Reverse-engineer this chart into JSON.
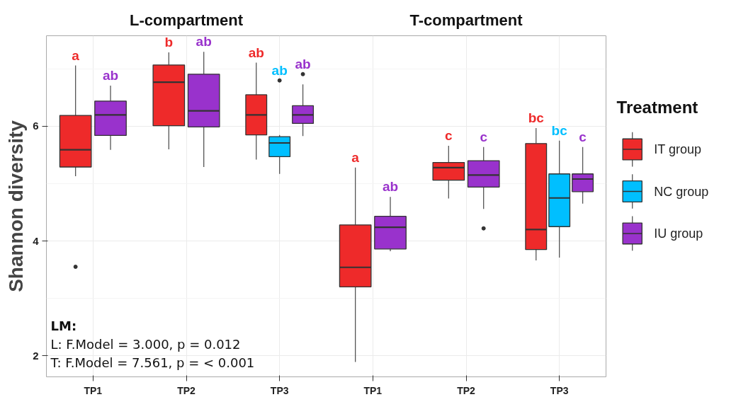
{
  "chart_data": {
    "type": "box",
    "ylabel": "Shannon diversity",
    "legend_title": "Treatment",
    "categories": [
      "TP1",
      "TP2",
      "TP3",
      "TP1",
      "TP2",
      "TP3"
    ],
    "ylim": [
      1.63,
      7.58
    ],
    "yticks": [
      2,
      4,
      6
    ],
    "grid": true,
    "legend": "right",
    "annotations": [
      "L-compartment",
      "T-compartment",
      "LM:",
      "L: F.Model = 3.000, p = 0.012",
      "T: F.Model = 7.561, p = < 0.001"
    ],
    "series": [
      {
        "name": "IT group",
        "color": "#ee2a2a",
        "value_labels": [
          "a",
          "b",
          "ab",
          "a",
          "c",
          "bc"
        ],
        "boxes": [
          {
            "low": 5.13,
            "q1": 5.29,
            "median": 5.59,
            "q3": 6.19,
            "high": 7.06,
            "outliers": [
              3.55
            ]
          },
          {
            "low": 5.6,
            "q1": 6.01,
            "median": 6.77,
            "q3": 7.07,
            "high": 7.29
          },
          {
            "low": 5.42,
            "q1": 5.85,
            "median": 6.2,
            "q3": 6.55,
            "high": 7.11
          },
          {
            "low": 1.89,
            "q1": 3.2,
            "median": 3.54,
            "q3": 4.28,
            "high": 5.28
          },
          {
            "low": 4.74,
            "q1": 5.06,
            "median": 5.28,
            "q3": 5.37,
            "high": 5.66
          },
          {
            "low": 3.66,
            "q1": 3.85,
            "median": 4.2,
            "q3": 5.7,
            "high": 5.97
          }
        ]
      },
      {
        "name": "NC group",
        "color": "#00bfff",
        "value_labels": [
          null,
          null,
          "ab",
          null,
          null,
          "bc"
        ],
        "boxes": [
          null,
          null,
          {
            "low": 5.17,
            "q1": 5.47,
            "median": 5.71,
            "q3": 5.82,
            "high": 5.85,
            "outliers": [
              6.8
            ]
          },
          null,
          null,
          {
            "low": 3.71,
            "q1": 4.25,
            "median": 4.75,
            "q3": 5.17,
            "high": 5.75
          }
        ]
      },
      {
        "name": "IU group",
        "color": "#9932cc",
        "value_labels": [
          "ab",
          "ab",
          "ab",
          "ab",
          "c",
          "c"
        ],
        "boxes": [
          {
            "low": 5.59,
            "q1": 5.84,
            "median": 6.2,
            "q3": 6.44,
            "high": 6.71
          },
          {
            "low": 5.29,
            "q1": 5.99,
            "median": 6.27,
            "q3": 6.91,
            "high": 7.3
          },
          {
            "low": 5.83,
            "q1": 6.05,
            "median": 6.2,
            "q3": 6.36,
            "high": 6.73,
            "outliers": [
              6.91
            ]
          },
          {
            "low": 3.82,
            "q1": 3.86,
            "median": 4.24,
            "q3": 4.43,
            "high": 4.77
          },
          {
            "low": 4.56,
            "q1": 4.94,
            "median": 5.15,
            "q3": 5.4,
            "high": 5.64,
            "outliers": [
              4.22
            ]
          },
          {
            "low": 4.65,
            "q1": 4.86,
            "median": 5.08,
            "q3": 5.17,
            "high": 5.64
          }
        ]
      }
    ]
  }
}
